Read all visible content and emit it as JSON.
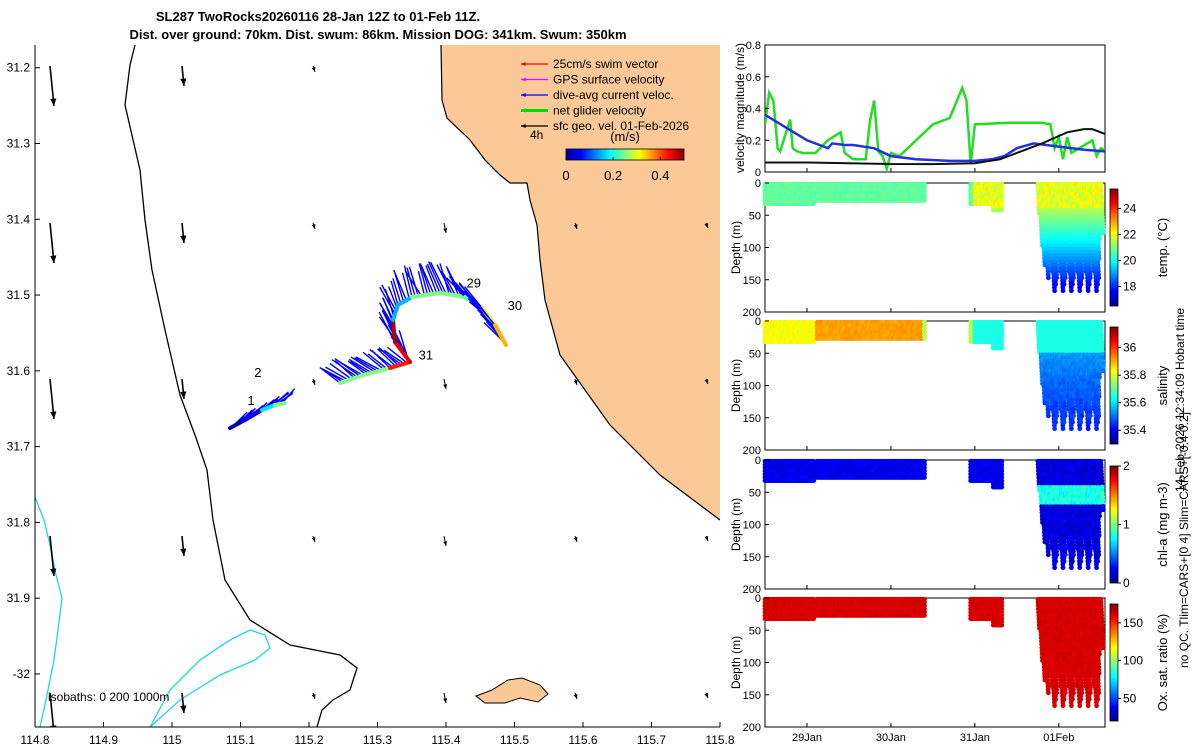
{
  "title": {
    "line1": "SL287 TwoRocks20260116 28-Jan 12Z to 01-Feb 11Z.",
    "line2": "Dist. over ground: 70km. Dist. swum: 86km. Mission DOG: 341km. Swum: 350km"
  },
  "map": {
    "xlim": [
      114.8,
      115.8
    ],
    "ylim": [
      -32.07,
      -31.17
    ],
    "x_ticks": [
      114.8,
      114.9,
      115,
      115.1,
      115.2,
      115.3,
      115.4,
      115.5,
      115.6,
      115.7,
      115.8
    ],
    "x_tick_labels": [
      "114.8",
      "114.9",
      "115",
      "115.1",
      "115.2",
      "115.3",
      "115.4",
      "115.5",
      "115.6",
      "115.7",
      "115.8"
    ],
    "y_ticks": [
      -31.2,
      -31.3,
      -31.4,
      -31.5,
      -31.6,
      -31.7,
      -31.8,
      -31.9,
      -32
    ],
    "y_tick_labels": [
      "31.2",
      "31.3",
      "31.4",
      "31.5",
      "31.6",
      "31.7",
      "31.8",
      "31.9",
      "-32"
    ],
    "isobaths_label": "isobaths: 0   200  1000m",
    "legend": [
      {
        "label": "25cm/s swim vector",
        "color": "#ff0000"
      },
      {
        "label": "GPS surface velocity",
        "color": "#ff00ff"
      },
      {
        "label": "dive-avg current veloc.",
        "color": "#0000ff"
      },
      {
        "label": "net glider velocity",
        "color": "#00dd00"
      },
      {
        "label": "sfc geo. vel. 01-Feb-2026",
        "color": "#000000"
      }
    ],
    "legend_time_label": "4h",
    "colorbar_title": "(m/s)",
    "colorbar_ticks": [
      "0",
      "0.2",
      "0.4"
    ],
    "colorbar_range": [
      0,
      0.5
    ],
    "day_labels": [
      {
        "text": "1",
        "lon": 115.11,
        "lat": -31.645
      },
      {
        "text": "2",
        "lon": 115.12,
        "lat": -31.608
      },
      {
        "text": "29",
        "lon": 115.43,
        "lat": -31.49
      },
      {
        "text": "30",
        "lon": 115.49,
        "lat": -31.52
      },
      {
        "text": "31",
        "lon": 115.36,
        "lat": -31.585
      }
    ],
    "colors": {
      "land": "#fbc898",
      "coast": "#000000",
      "isobath": "#20d8d8",
      "current": "#0000ff"
    }
  },
  "chart_data": [
    {
      "type": "line",
      "title": "",
      "ylabel": "velocity magnitude (m/s)",
      "ylim": [
        0,
        0.8
      ],
      "y_ticks": [
        "0",
        "0.2",
        "0.4",
        "0.6",
        "0.8"
      ],
      "x_range_days": [
        0,
        4.05
      ],
      "x_ticks": [
        0.5,
        1.5,
        2.5,
        3.5
      ],
      "x_tick_labels": [
        "29Jan",
        "30Jan",
        "31Jan",
        "01Feb"
      ],
      "series": [
        {
          "name": "net glider velocity",
          "color": "#22dd22",
          "x": [
            0,
            0.05,
            0.1,
            0.15,
            0.18,
            0.3,
            0.33,
            0.38,
            0.45,
            0.6,
            0.75,
            0.9,
            0.95,
            1.0,
            1.05,
            1.2,
            1.25,
            1.3,
            1.35,
            1.4,
            1.45,
            1.5,
            1.6,
            2.0,
            2.2,
            2.35,
            2.4,
            2.45,
            2.5,
            2.9,
            3.1,
            3.3,
            3.4,
            3.45,
            3.5,
            3.55,
            3.6,
            3.65,
            3.9,
            3.95,
            4.0,
            4.05
          ],
          "y": [
            0.3,
            0.5,
            0.45,
            0.15,
            0.13,
            0.33,
            0.15,
            0.13,
            0.12,
            0.12,
            0.2,
            0.25,
            0.12,
            0.1,
            0.08,
            0.08,
            0.32,
            0.45,
            0.13,
            0.1,
            0.02,
            0.12,
            0.1,
            0.3,
            0.34,
            0.53,
            0.45,
            0.05,
            0.3,
            0.31,
            0.31,
            0.31,
            0.3,
            0.15,
            0.22,
            0.08,
            0.22,
            0.12,
            0.2,
            0.1,
            0.15,
            0.14
          ]
        },
        {
          "name": "dive-avg current veloc.",
          "color": "#2233dd",
          "x": [
            0,
            0.25,
            0.5,
            0.75,
            0.8,
            0.95,
            1.05,
            1.3,
            1.5,
            1.8,
            2.2,
            2.5,
            2.7,
            2.85,
            3.0,
            3.2,
            3.5,
            3.8,
            4.05
          ],
          "y": [
            0.36,
            0.28,
            0.2,
            0.15,
            0.18,
            0.17,
            0.17,
            0.15,
            0.1,
            0.08,
            0.07,
            0.07,
            0.08,
            0.1,
            0.15,
            0.18,
            0.16,
            0.14,
            0.13
          ]
        },
        {
          "name": "sfc geo. vel.",
          "color": "#111111",
          "x": [
            0,
            0.5,
            1.0,
            1.5,
            2.0,
            2.5,
            2.8,
            3.0,
            3.3,
            3.6,
            3.8,
            3.9,
            4.05
          ],
          "y": [
            0.06,
            0.06,
            0.055,
            0.05,
            0.05,
            0.055,
            0.08,
            0.12,
            0.18,
            0.25,
            0.27,
            0.27,
            0.24
          ]
        }
      ]
    },
    {
      "type": "scatter",
      "name": "temperature section",
      "ylabel": "Depth (m)",
      "ylim": [
        0,
        200
      ],
      "y_ticks": [
        "0",
        "50",
        "100",
        "150",
        "200"
      ],
      "colorbar_label": "temp. (°C)",
      "colorbar_ticks": [
        "18",
        "20",
        "22",
        "24"
      ],
      "colorbar_range": [
        16.5,
        25.5
      ],
      "x_range_days": [
        0,
        4.05
      ]
    },
    {
      "type": "scatter",
      "name": "salinity section",
      "ylabel": "Depth (m)",
      "ylim": [
        0,
        200
      ],
      "y_ticks": [
        "0",
        "50",
        "100",
        "150",
        "200"
      ],
      "colorbar_label": "salinity",
      "colorbar_ticks": [
        "35.4",
        "35.6",
        "35.8",
        "36"
      ],
      "colorbar_range": [
        35.3,
        36.15
      ],
      "x_range_days": [
        0,
        4.05
      ]
    },
    {
      "type": "scatter",
      "name": "chlorophyll section",
      "ylabel": "Depth (m)",
      "ylim": [
        0,
        200
      ],
      "y_ticks": [
        "0",
        "50",
        "100",
        "150",
        "200"
      ],
      "colorbar_label": "chl-a (mg m-3)",
      "colorbar_ticks": [
        "0",
        "1",
        "2"
      ],
      "colorbar_range": [
        0,
        2
      ],
      "x_range_days": [
        0,
        4.05
      ]
    },
    {
      "type": "scatter",
      "name": "oxygen section",
      "ylabel": "Depth (m)",
      "ylim": [
        0,
        200
      ],
      "y_ticks": [
        "0",
        "50",
        "100",
        "150",
        "200"
      ],
      "colorbar_label": "Ox. sat. ratio (%)",
      "colorbar_ticks": [
        "50",
        "100",
        "150"
      ],
      "colorbar_range": [
        20,
        175
      ],
      "x_range_days": [
        0,
        4.05
      ],
      "x_ticks": [
        0.5,
        1.5,
        2.5,
        3.5
      ],
      "x_tick_labels": [
        "29Jan",
        "30Jan",
        "31Jan",
        "01Feb"
      ]
    }
  ],
  "side_note_1": "14-Feb-2026 12:34:09 Hobart time",
  "side_note_2": "no QC. Tlim=CARS+[0 4] Slim=CARS+[-0.4 0.2]"
}
